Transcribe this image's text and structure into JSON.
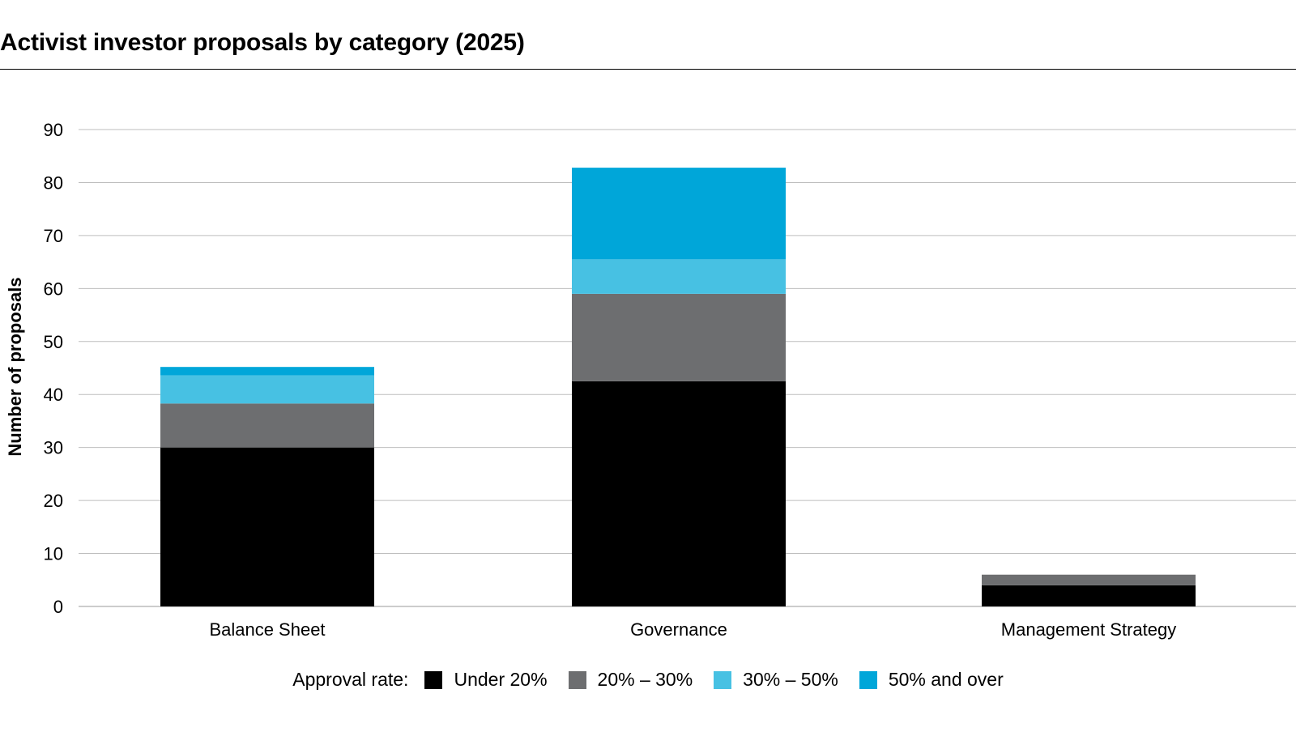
{
  "title": "Activist investor proposals by category (2025)",
  "legend_prefix": "Approval rate:",
  "colors": {
    "under_20": "#000000",
    "20_30": "#6d6e70",
    "30_50": "#47c1e3",
    "50_over": "#00a6d9",
    "grid": "#bdbdbd",
    "axis": "#9a9a9a"
  },
  "chart_data": {
    "type": "bar",
    "stacked": true,
    "title": "Activist investor proposals by category (2025)",
    "xlabel": "",
    "ylabel": "Number of proposals",
    "ylim": [
      0,
      90
    ],
    "yticks": [
      0,
      10,
      20,
      30,
      40,
      50,
      60,
      70,
      80,
      90
    ],
    "grid": true,
    "legend_position": "bottom",
    "categories": [
      "Balance Sheet",
      "Governance",
      "Management Strategy"
    ],
    "series": [
      {
        "name": "Under 20%",
        "color": "#000000",
        "values": [
          30,
          42.5,
          4
        ]
      },
      {
        "name": "20% – 30%",
        "color": "#6d6e70",
        "values": [
          8.3,
          16.5,
          2
        ]
      },
      {
        "name": "30% – 50%",
        "color": "#47c1e3",
        "values": [
          5.3,
          6.5,
          0
        ]
      },
      {
        "name": "50% and over",
        "color": "#00a6d9",
        "values": [
          1.6,
          17.3,
          0
        ]
      }
    ]
  }
}
